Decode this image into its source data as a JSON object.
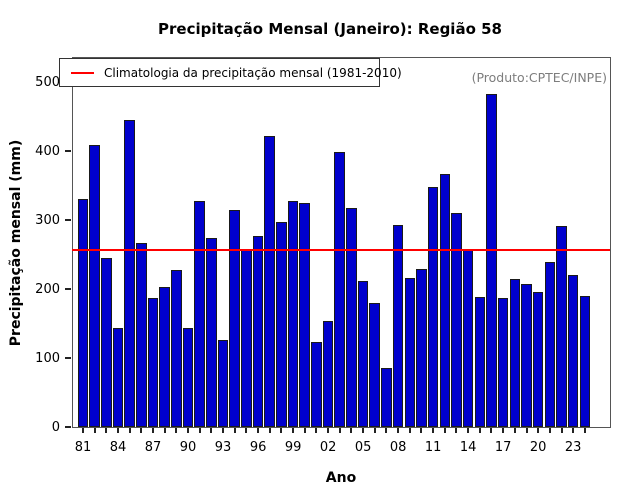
{
  "title": "Precipitação Mensal (Janeiro): Região 58",
  "legend": {
    "climatology_label": "Climatologia da precipitação mensal (1981-2010)"
  },
  "annotation": {
    "product_label": "(Produto:CPTEC/INPE)"
  },
  "colors": {
    "bar_fill": "#0000CD",
    "bar_border": "#1A1A1A",
    "climatology_line": "#FF0000",
    "grid_line": "#C8C8C8",
    "frame": "#555555",
    "annotation_text": "#7D7D7D"
  },
  "chart_data": {
    "type": "bar",
    "title": "Precipitação Mensal (Janeiro): Região 58",
    "xlabel": "Ano",
    "ylabel": "Precipitação mensal (mm)",
    "ylim": [
      0,
      536
    ],
    "yticks": [
      0,
      100,
      200,
      300,
      400,
      500
    ],
    "x_tick_labels_shown": [
      "81",
      "84",
      "87",
      "90",
      "93",
      "96",
      "99",
      "02",
      "05",
      "08",
      "11",
      "14",
      "17",
      "20",
      "23"
    ],
    "grid": "vertical dotted line at every year",
    "legend_position": "top-left inside plot",
    "climatology_1981_2010": 257,
    "years": [
      1981,
      1982,
      1983,
      1984,
      1985,
      1986,
      1987,
      1988,
      1989,
      1990,
      1991,
      1992,
      1993,
      1994,
      1995,
      1996,
      1997,
      1998,
      1999,
      2000,
      2001,
      2002,
      2003,
      2004,
      2005,
      2006,
      2007,
      2008,
      2009,
      2010,
      2011,
      2012,
      2013,
      2014,
      2015,
      2016,
      2017,
      2018,
      2019,
      2020,
      2021,
      2022,
      2023,
      2024
    ],
    "values": [
      331,
      408,
      245,
      143,
      445,
      266,
      187,
      203,
      228,
      144,
      327,
      274,
      126,
      314,
      257,
      277,
      422,
      297,
      327,
      324,
      123,
      153,
      398,
      317,
      212,
      179,
      85,
      293,
      216,
      229,
      348,
      366,
      310,
      256,
      189,
      483,
      187,
      215,
      207,
      196,
      239,
      292,
      221,
      190
    ]
  }
}
